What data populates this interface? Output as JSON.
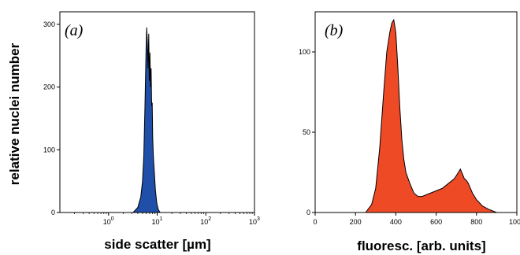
{
  "colors": {
    "panel_a_fill": "#1f4fa8",
    "panel_b_fill": "#ef4a26",
    "outline": "#000000"
  },
  "chart_data": [
    {
      "type": "area",
      "panel_label": "(a)",
      "title": "",
      "xlabel": "side scatter [µm]",
      "ylabel": "relative nuclei number",
      "x_scale": "log",
      "xlim": [
        0.1,
        1000
      ],
      "ylim": [
        0,
        320
      ],
      "x_ticks": [
        {
          "value": 1,
          "base": "10",
          "exp": "0"
        },
        {
          "value": 10,
          "base": "10",
          "exp": "1"
        },
        {
          "value": 100,
          "base": "10",
          "exp": "2"
        },
        {
          "value": 1000,
          "base": "10",
          "exp": "3"
        }
      ],
      "y_ticks": [
        0,
        100,
        200,
        300
      ],
      "grid": false,
      "series": [
        {
          "x": [
            3.2,
            4.0,
            4.6,
            5.0,
            5.3,
            5.6,
            5.9,
            6.1,
            6.3,
            6.5,
            6.7,
            6.9,
            7.1,
            7.3,
            7.5,
            7.7,
            7.9,
            8.1,
            8.3,
            8.5,
            8.8,
            9.2,
            9.8,
            10.5,
            11.5
          ],
          "y": [
            0,
            8,
            25,
            50,
            90,
            170,
            260,
            295,
            270,
            230,
            285,
            210,
            255,
            200,
            230,
            170,
            175,
            120,
            95,
            80,
            60,
            35,
            15,
            5,
            0
          ]
        }
      ]
    },
    {
      "type": "area",
      "panel_label": "(b)",
      "title": "",
      "xlabel": "fluoresc. [arb. units]",
      "ylabel": "",
      "x_scale": "linear",
      "xlim": [
        0,
        1000
      ],
      "ylim": [
        0,
        125
      ],
      "x_ticks": [
        0,
        200,
        400,
        600,
        800,
        1000
      ],
      "y_ticks": [
        0,
        50,
        100
      ],
      "grid": false,
      "series": [
        {
          "x": [
            250,
            280,
            300,
            320,
            340,
            355,
            370,
            380,
            390,
            400,
            410,
            420,
            430,
            440,
            450,
            470,
            490,
            510,
            530,
            550,
            570,
            590,
            610,
            630,
            650,
            670,
            690,
            700,
            710,
            720,
            730,
            740,
            750,
            760,
            780,
            800,
            830,
            860,
            880,
            900
          ],
          "y": [
            0,
            5,
            15,
            40,
            75,
            100,
            112,
            118,
            120,
            112,
            90,
            65,
            45,
            33,
            25,
            18,
            12,
            10,
            10,
            11,
            12,
            13,
            14,
            15,
            17,
            19,
            21,
            23,
            25,
            27,
            24,
            21,
            20,
            18,
            12,
            8,
            4,
            2,
            1,
            0
          ]
        }
      ]
    }
  ]
}
